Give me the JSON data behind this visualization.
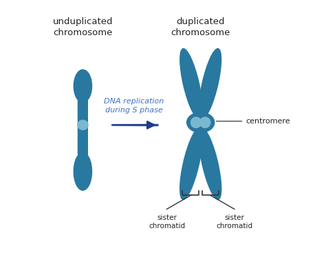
{
  "bg_color": "#ffffff",
  "chrom_color": "#2878a0",
  "centromere_color": "#7ab8d0",
  "arrow_color": "#1e3a8a",
  "text_color_title": "#222222",
  "text_color_arrow": "#3a72c0",
  "text_color_label": "#222222",
  "title_left": "unduplicated\nchromosome",
  "title_right": "duplicated\nchromosome",
  "arrow_label": "DNA replication\nduring S phase",
  "label_centromere": "centromere",
  "label_sister1": "sister\nchromatid",
  "label_sister2": "sister\nchromatid",
  "fig_w": 4.74,
  "fig_h": 3.7,
  "dpi": 100
}
